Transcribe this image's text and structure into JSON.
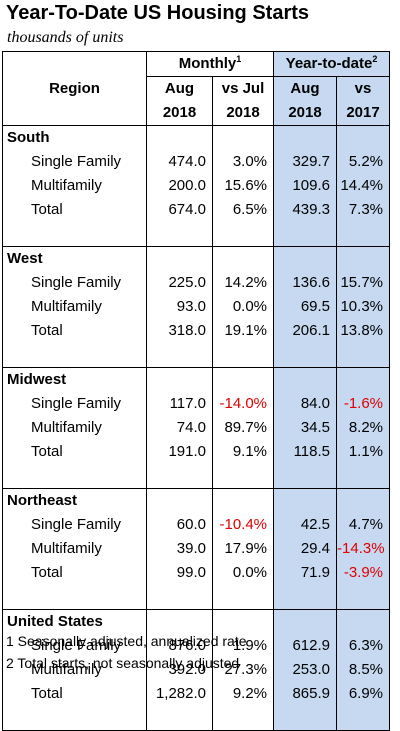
{
  "title": "Year-To-Date US Housing Starts",
  "subtitle": "thousands of units",
  "headers": {
    "region": "Region",
    "monthly": "Monthly",
    "monthly_note": "1",
    "ytd": "Year-to-date",
    "ytd_note": "2",
    "col1_l1": "Aug",
    "col1_l2": "2018",
    "col2_l1": "vs Jul",
    "col2_l2": "2018",
    "col3_l1": "Aug",
    "col3_l2": "2018",
    "col4_l1": "vs",
    "col4_l2": "2017"
  },
  "colors": {
    "ytd_background": "#c6d9f1",
    "negative": "#e00000"
  },
  "sections": [
    {
      "name": "South",
      "rows": [
        {
          "label": "Single Family",
          "aug": "474.0",
          "vs_jul": "3.0%",
          "ytd_aug": "329.7",
          "vs_2017": "5.2%"
        },
        {
          "label": "Multifamily",
          "aug": "200.0",
          "vs_jul": "15.6%",
          "ytd_aug": "109.6",
          "vs_2017": "14.4%"
        },
        {
          "label": "Total",
          "aug": "674.0",
          "vs_jul": "6.5%",
          "ytd_aug": "439.3",
          "vs_2017": "7.3%"
        }
      ]
    },
    {
      "name": "West",
      "rows": [
        {
          "label": "Single Family",
          "aug": "225.0",
          "vs_jul": "14.2%",
          "ytd_aug": "136.6",
          "vs_2017": "15.7%"
        },
        {
          "label": "Multifamily",
          "aug": "93.0",
          "vs_jul": "0.0%",
          "ytd_aug": "69.5",
          "vs_2017": "10.3%"
        },
        {
          "label": "Total",
          "aug": "318.0",
          "vs_jul": "19.1%",
          "ytd_aug": "206.1",
          "vs_2017": "13.8%"
        }
      ]
    },
    {
      "name": "Midwest",
      "rows": [
        {
          "label": "Single Family",
          "aug": "117.0",
          "vs_jul": "-14.0%",
          "ytd_aug": "84.0",
          "vs_2017": "-1.6%"
        },
        {
          "label": "Multifamily",
          "aug": "74.0",
          "vs_jul": "89.7%",
          "ytd_aug": "34.5",
          "vs_2017": "8.2%"
        },
        {
          "label": "Total",
          "aug": "191.0",
          "vs_jul": "9.1%",
          "ytd_aug": "118.5",
          "vs_2017": "1.1%"
        }
      ]
    },
    {
      "name": "Northeast",
      "rows": [
        {
          "label": "Single Family",
          "aug": "60.0",
          "vs_jul": "-10.4%",
          "ytd_aug": "42.5",
          "vs_2017": "4.7%"
        },
        {
          "label": "Multifamily",
          "aug": "39.0",
          "vs_jul": "17.9%",
          "ytd_aug": "29.4",
          "vs_2017": "-14.3%"
        },
        {
          "label": "Total",
          "aug": "99.0",
          "vs_jul": "0.0%",
          "ytd_aug": "71.9",
          "vs_2017": "-3.9%"
        }
      ]
    },
    {
      "name": "United States",
      "rows": [
        {
          "label": "Single Family",
          "aug": "876.0",
          "vs_jul": "1.9%",
          "ytd_aug": "612.9",
          "vs_2017": "6.3%"
        },
        {
          "label": "Multifamily",
          "aug": "392.0",
          "vs_jul": "27.3%",
          "ytd_aug": "253.0",
          "vs_2017": "8.5%"
        },
        {
          "label": "Total",
          "aug": "1,282.0",
          "vs_jul": "9.2%",
          "ytd_aug": "865.9",
          "vs_2017": "6.9%"
        }
      ]
    }
  ],
  "notes": [
    "1 Seasonally adjusted, annualized rate",
    "2 Total starts, not seasonally adjusted"
  ],
  "chart_data": {
    "type": "table",
    "title": "Year-To-Date US Housing Starts",
    "subtitle": "thousands of units",
    "columns": [
      "Region",
      "Monthly Aug 2018",
      "Monthly vs Jul 2018",
      "Year-to-date Aug 2018",
      "Year-to-date vs 2017"
    ],
    "rows": [
      [
        "South",
        "Single Family",
        474.0,
        3.0,
        329.7,
        5.2
      ],
      [
        "South",
        "Multifamily",
        200.0,
        15.6,
        109.6,
        14.4
      ],
      [
        "South",
        "Total",
        674.0,
        6.5,
        439.3,
        7.3
      ],
      [
        "West",
        "Single Family",
        225.0,
        14.2,
        136.6,
        15.7
      ],
      [
        "West",
        "Multifamily",
        93.0,
        0.0,
        69.5,
        10.3
      ],
      [
        "West",
        "Total",
        318.0,
        19.1,
        206.1,
        13.8
      ],
      [
        "Midwest",
        "Single Family",
        117.0,
        -14.0,
        84.0,
        -1.6
      ],
      [
        "Midwest",
        "Multifamily",
        74.0,
        89.7,
        34.5,
        8.2
      ],
      [
        "Midwest",
        "Total",
        191.0,
        9.1,
        118.5,
        1.1
      ],
      [
        "Northeast",
        "Single Family",
        60.0,
        -10.4,
        42.5,
        4.7
      ],
      [
        "Northeast",
        "Multifamily",
        39.0,
        17.9,
        29.4,
        -14.3
      ],
      [
        "Northeast",
        "Total",
        99.0,
        0.0,
        71.9,
        -3.9
      ],
      [
        "United States",
        "Single Family",
        876.0,
        1.9,
        612.9,
        6.3
      ],
      [
        "United States",
        "Multifamily",
        392.0,
        27.3,
        253.0,
        8.5
      ],
      [
        "United States",
        "Total",
        1282.0,
        9.2,
        865.9,
        6.9
      ]
    ]
  }
}
